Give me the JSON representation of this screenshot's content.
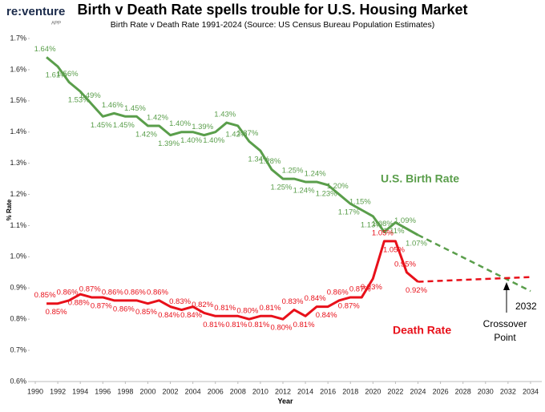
{
  "logo": {
    "name": "re:venture",
    "sub": "APP"
  },
  "chart_data": {
    "type": "line",
    "title": "Birth v Death Rate spells trouble for U.S. Housing Market",
    "subtitle": "Birth Rate v Death Rate 1991-2024 (Source: US Census Bureau Population Estimates)",
    "x_label": "Year",
    "y_label": "% Rate",
    "xlim": [
      1989.5,
      2035
    ],
    "xticks": [
      1990,
      1992,
      1994,
      1996,
      1998,
      2000,
      2002,
      2004,
      2006,
      2008,
      2010,
      2012,
      2014,
      2016,
      2018,
      2020,
      2022,
      2024,
      2026,
      2028,
      2030,
      2032,
      2034
    ],
    "ylim": [
      0.6,
      1.7
    ],
    "yticks": [
      {
        "value": 0.6,
        "label": "0.6%"
      },
      {
        "value": 0.7,
        "label": "0.7%"
      },
      {
        "value": 0.8,
        "label": "0.8%"
      },
      {
        "value": 0.9,
        "label": "0.9%"
      },
      {
        "value": 1.0,
        "label": "1.0%"
      },
      {
        "value": 1.1,
        "label": "1.1%"
      },
      {
        "value": 1.2,
        "label": "1.2%"
      },
      {
        "value": 1.3,
        "label": "1.3%"
      },
      {
        "value": 1.4,
        "label": "1.4%"
      },
      {
        "value": 1.5,
        "label": "1.5%"
      },
      {
        "value": 1.6,
        "label": "1.6%"
      },
      {
        "value": 1.7,
        "label": "1.7%"
      }
    ],
    "x": [
      1991,
      1992,
      1993,
      1994,
      1995,
      1996,
      1997,
      1998,
      1999,
      2000,
      2001,
      2002,
      2003,
      2004,
      2005,
      2006,
      2007,
      2008,
      2009,
      2010,
      2011,
      2012,
      2013,
      2014,
      2015,
      2016,
      2017,
      2018,
      2019,
      2020,
      2021,
      2022,
      2023,
      2024
    ],
    "series": [
      {
        "name": "U.S. Birth Rate",
        "color": "#5a9e4b",
        "values": [
          1.64,
          1.61,
          1.56,
          1.53,
          1.49,
          1.45,
          1.46,
          1.45,
          1.45,
          1.42,
          1.42,
          1.39,
          1.4,
          1.4,
          1.39,
          1.4,
          1.43,
          1.42,
          1.37,
          1.34,
          1.28,
          1.25,
          1.25,
          1.24,
          1.24,
          1.23,
          1.2,
          1.17,
          1.15,
          1.13,
          1.08,
          1.11,
          1.09,
          1.07
        ],
        "value_labels": [
          "1.64%",
          "1.61%",
          "1.56%",
          "1.53%",
          "1.49%",
          "1.45%",
          "1.46%",
          "1.45%",
          "1.45%",
          "1.42%",
          "1.42%",
          "1.39%",
          "1.40%",
          "1.40%",
          "1.39%",
          "1.40%",
          "1.43%",
          "1.42%",
          "1.37%",
          "1.34%",
          "1.28%",
          "1.25%",
          "1.25%",
          "1.24%",
          "1.24%",
          "1.23%",
          "1.20%",
          "1.17%",
          "1.15%",
          "1.13%",
          "1.08%",
          "1.11%",
          "1.09%",
          "1.07%"
        ],
        "projection": {
          "x": [
            2024,
            2034
          ],
          "values": [
            1.07,
            0.89
          ]
        }
      },
      {
        "name": "Death Rate",
        "color": "#e8101a",
        "values": [
          0.85,
          0.85,
          0.86,
          0.88,
          0.87,
          0.87,
          0.86,
          0.86,
          0.86,
          0.85,
          0.86,
          0.84,
          0.83,
          0.84,
          0.82,
          0.81,
          0.81,
          0.81,
          0.8,
          0.81,
          0.81,
          0.8,
          0.83,
          0.81,
          0.84,
          0.84,
          0.86,
          0.87,
          0.87,
          0.93,
          1.05,
          1.05,
          0.95,
          0.92
        ],
        "value_labels": [
          "0.85%",
          "0.85%",
          "0.86%",
          "0.88%",
          "0.87%",
          "0.87%",
          "0.86%",
          "0.86%",
          "0.86%",
          "0.85%",
          "0.86%",
          "0.84%",
          "0.83%",
          "0.84%",
          "0.82%",
          "0.81%",
          "0.81%",
          "0.81%",
          "0.80%",
          "0.81%",
          "0.81%",
          "0.80%",
          "0.83%",
          "0.81%",
          "0.84%",
          "0.84%",
          "0.86%",
          "0.87%",
          "0.87%",
          "0.93%",
          "1.05%",
          "1.05%",
          "0.95%",
          "0.92%"
        ],
        "projection": {
          "x": [
            2024,
            2034
          ],
          "values": [
            0.92,
            0.935
          ]
        }
      }
    ],
    "crossover_year": "2032",
    "crossover_label": [
      "Crossover",
      "Point"
    ]
  }
}
